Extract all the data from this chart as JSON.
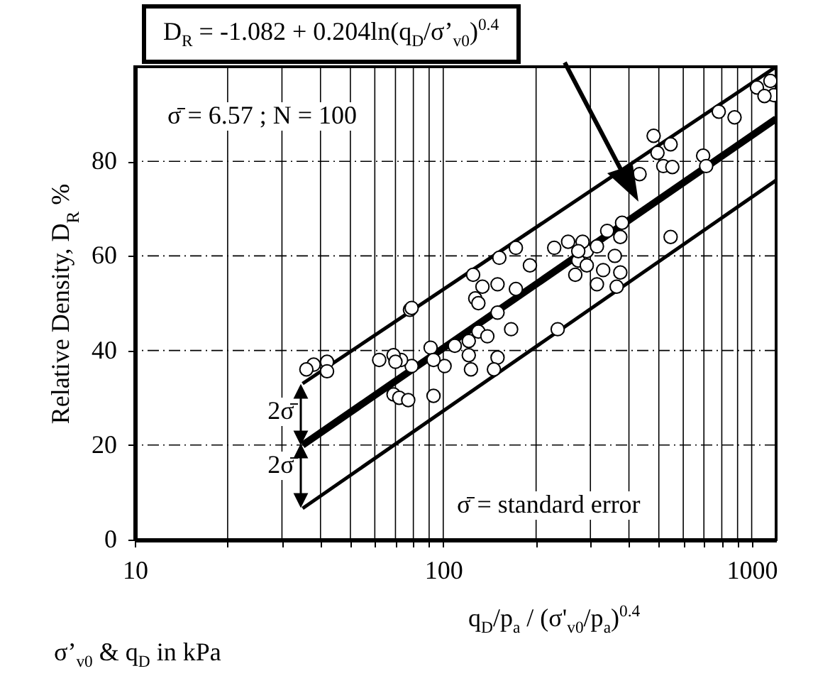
{
  "chart_data": {
    "type": "scatter",
    "ylabel": "Relative Density, D$_{R}$ %",
    "xlabel": "q$_{D}$/p$_{a}$ / (σ'$_{v0}$/p$_{a}$)$^{0.4}$",
    "annotations": [
      "D$_{R}$ = -1.082 + 0.204ln(q$_{D}$/σ’$_{v0}$)$^{0.4}$",
      "σ̄ = 6.57  ;  N = 100",
      {
        "text": "2σ̄",
        "x": 35,
        "y": 20
      },
      {
        "text": "2σ̄",
        "x": 35,
        "y": 6.6
      },
      "σ̄ = standard error",
      "σ’$_{v0}$ & q$_{D}$  in kPa"
    ],
    "log": "x",
    "xlim": [
      10,
      1200
    ],
    "ylim": [
      0,
      100
    ],
    "xticks": [
      10,
      {
        "value": 20,
        "label": null
      },
      {
        "value": 30,
        "label": null
      },
      {
        "value": 40,
        "label": null
      },
      {
        "value": 50,
        "label": null
      },
      {
        "value": 60,
        "label": null
      },
      {
        "value": 70,
        "label": null
      },
      {
        "value": 80,
        "label": null
      },
      {
        "value": 90,
        "label": null
      },
      100,
      {
        "value": 200,
        "label": null
      },
      {
        "value": 300,
        "label": null
      },
      {
        "value": 400,
        "label": null
      },
      {
        "value": 500,
        "label": null
      },
      {
        "value": 600,
        "label": null
      },
      {
        "value": 700,
        "label": null
      },
      {
        "value": 800,
        "label": null
      },
      {
        "value": 900,
        "label": null
      },
      1000
    ],
    "yticks": [
      0,
      20,
      40,
      60,
      80
    ],
    "grid": true,
    "marker": "circle",
    "series": [
      {
        "type": "line",
        "marker": "none",
        "color": "#000000",
        "x": [
          35,
          1200
        ],
        "values": [
          33,
          100
        ]
      },
      {
        "type": "line",
        "marker": "none",
        "color": "#000000",
        "x": [
          35,
          1200
        ],
        "values": [
          20,
          89
        ]
      },
      {
        "type": "line",
        "marker": "none",
        "color": "#000000",
        "x": [
          35,
          1200
        ],
        "values": [
          6.6,
          76
        ]
      },
      {
        "type": "scatter",
        "color": "#ffffff",
        "x": [
          38,
          42,
          42,
          36,
          78,
          152,
          172,
          125,
          134,
          127,
          150,
          172,
          191,
          229,
          254,
          274,
          292,
          79,
          130,
          150,
          166,
          130,
          139,
          121,
          109,
          121,
          150,
          146,
          123,
          101,
          91,
          93,
          79,
          73,
          69,
          62,
          69,
          72,
          77,
          93,
          235,
          70,
          481,
          546,
          495,
          517,
          553,
          433,
          696,
          712,
          782,
          880,
          1040,
          1150,
          1180,
          1100,
          546,
          380,
          375,
          340,
          315,
          283,
          360,
          375,
          330,
          292,
          268,
          315,
          365,
          274
        ],
        "values": [
          37,
          37.6,
          35.6,
          36,
          48.6,
          59.6,
          61.7,
          56,
          53.5,
          51,
          54,
          53,
          58,
          61.7,
          63,
          59,
          61,
          49,
          50,
          48,
          44.5,
          44,
          43,
          42,
          41,
          39,
          38.5,
          36,
          36,
          36.7,
          40.6,
          38,
          36.7,
          38,
          39,
          38,
          30.7,
          30,
          29.5,
          30.4,
          44.5,
          37.6,
          85.4,
          83.6,
          81.8,
          79,
          78.8,
          77.3,
          81.2,
          79,
          90.5,
          89.3,
          95.6,
          97,
          94,
          93.8,
          64,
          67,
          64,
          65.3,
          62,
          63,
          60,
          56.5,
          57,
          58,
          56,
          54,
          53.5,
          61
        ]
      }
    ]
  }
}
